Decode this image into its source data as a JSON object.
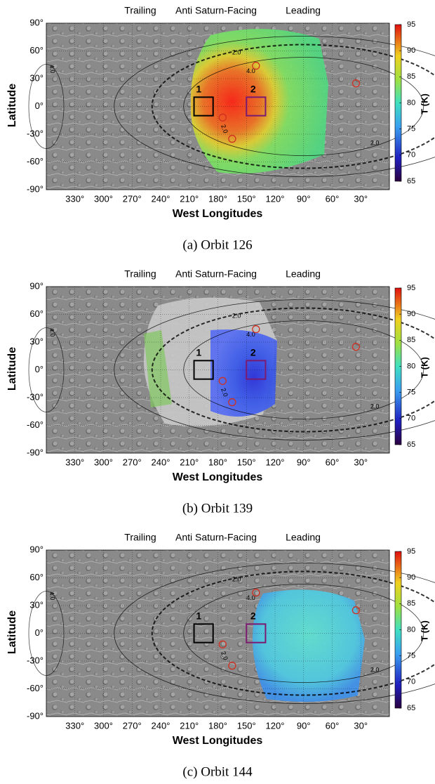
{
  "chart_data": [
    {
      "type": "map",
      "caption": "(a) Orbit 126",
      "header_labels": [
        "Trailing",
        "Anti Saturn-Facing",
        "Leading"
      ],
      "xlabel": "West Longitudes",
      "ylabel": "Latitude",
      "colorbar_label": "T (K)",
      "xlim": [
        360,
        0
      ],
      "xticks": [
        {
          "value": 330,
          "label": "330°"
        },
        {
          "value": 300,
          "label": "300°"
        },
        {
          "value": 270,
          "label": "270°"
        },
        {
          "value": 240,
          "label": "240°"
        },
        {
          "value": 210,
          "label": "210°"
        },
        {
          "value": 180,
          "label": "180°"
        },
        {
          "value": 150,
          "label": "150°"
        },
        {
          "value": 120,
          "label": "120°"
        },
        {
          "value": 90,
          "label": "90°"
        },
        {
          "value": 60,
          "label": "60°"
        },
        {
          "value": 30,
          "label": "30°"
        }
      ],
      "ylim": [
        -90,
        90
      ],
      "yticks": [
        {
          "value": 90,
          "label": "90°"
        },
        {
          "value": 60,
          "label": "60°"
        },
        {
          "value": 30,
          "label": "30°"
        },
        {
          "value": 0,
          "label": "0°"
        },
        {
          "value": -30,
          "label": "-30°"
        },
        {
          "value": -60,
          "label": "-60°"
        },
        {
          "value": -90,
          "label": "-90°"
        }
      ],
      "clim": [
        65,
        95
      ],
      "cticks": [
        65,
        70,
        75,
        80,
        85,
        90,
        95
      ],
      "box_labels": [
        "1",
        "2"
      ],
      "contour_labels": [
        "2.0",
        "4.0"
      ]
    },
    {
      "type": "map",
      "caption": "(b) Orbit 139",
      "header_labels": [
        "Trailing",
        "Anti Saturn-Facing",
        "Leading"
      ],
      "xlabel": "West Longitudes",
      "ylabel": "Latitude",
      "colorbar_label": "T (K)",
      "xlim": [
        360,
        0
      ],
      "xticks": [
        {
          "value": 330,
          "label": "330°"
        },
        {
          "value": 300,
          "label": "300°"
        },
        {
          "value": 270,
          "label": "270°"
        },
        {
          "value": 240,
          "label": "240°"
        },
        {
          "value": 210,
          "label": "210°"
        },
        {
          "value": 180,
          "label": "180°"
        },
        {
          "value": 150,
          "label": "150°"
        },
        {
          "value": 120,
          "label": "120°"
        },
        {
          "value": 90,
          "label": "90°"
        },
        {
          "value": 60,
          "label": "60°"
        },
        {
          "value": 30,
          "label": "30°"
        }
      ],
      "ylim": [
        -90,
        90
      ],
      "yticks": [
        {
          "value": 90,
          "label": "90°"
        },
        {
          "value": 60,
          "label": "60°"
        },
        {
          "value": 30,
          "label": "30°"
        },
        {
          "value": 0,
          "label": "0°"
        },
        {
          "value": -30,
          "label": "-30°"
        },
        {
          "value": -60,
          "label": "-60°"
        },
        {
          "value": -90,
          "label": "-90°"
        }
      ],
      "clim": [
        65,
        95
      ],
      "cticks": [
        65,
        70,
        75,
        80,
        85,
        90,
        95
      ],
      "box_labels": [
        "1",
        "2"
      ],
      "contour_labels": [
        "2.0",
        "4.0"
      ]
    },
    {
      "type": "map",
      "caption": "(c) Orbit 144",
      "header_labels": [
        "Trailing",
        "Anti Saturn-Facing",
        "Leading"
      ],
      "xlabel": "West Longitudes",
      "ylabel": "Latitude",
      "colorbar_label": "T (K)",
      "xlim": [
        360,
        0
      ],
      "xticks": [
        {
          "value": 330,
          "label": "330°"
        },
        {
          "value": 300,
          "label": "300°"
        },
        {
          "value": 270,
          "label": "270°"
        },
        {
          "value": 240,
          "label": "240°"
        },
        {
          "value": 210,
          "label": "210°"
        },
        {
          "value": 180,
          "label": "180°"
        },
        {
          "value": 150,
          "label": "150°"
        },
        {
          "value": 120,
          "label": "120°"
        },
        {
          "value": 90,
          "label": "90°"
        },
        {
          "value": 60,
          "label": "60°"
        },
        {
          "value": 30,
          "label": "30°"
        }
      ],
      "ylim": [
        -90,
        90
      ],
      "yticks": [
        {
          "value": 90,
          "label": "90°"
        },
        {
          "value": 60,
          "label": "60°"
        },
        {
          "value": 30,
          "label": "30°"
        },
        {
          "value": 0,
          "label": "0°"
        },
        {
          "value": -30,
          "label": "-30°"
        },
        {
          "value": -60,
          "label": "-60°"
        },
        {
          "value": -90,
          "label": "-90°"
        }
      ],
      "clim": [
        65,
        95
      ],
      "cticks": [
        65,
        70,
        75,
        80,
        85,
        90,
        95
      ],
      "box_labels": [
        "1",
        "2"
      ],
      "contour_labels": [
        "2.0",
        "4.0"
      ]
    }
  ]
}
